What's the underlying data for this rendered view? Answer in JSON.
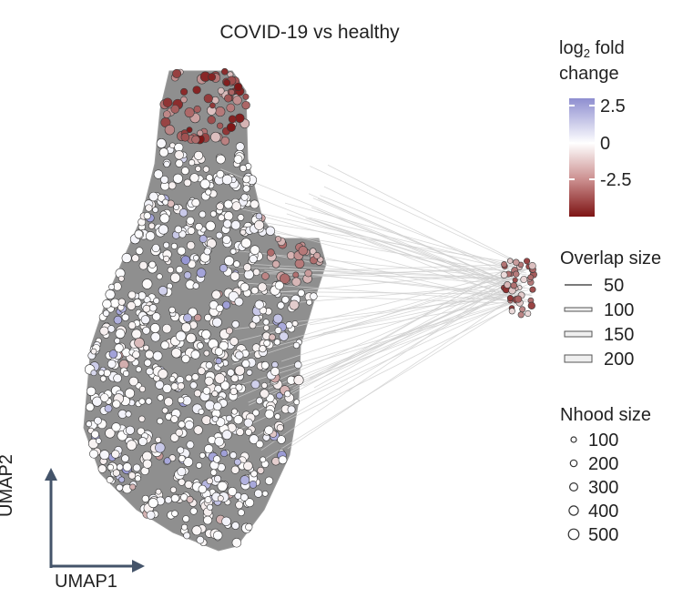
{
  "chart_data": {
    "type": "scatter",
    "title": "COVID-19 vs healthy",
    "xlabel": "UMAP1",
    "ylabel": "UMAP2",
    "grid": false,
    "nodes": "neighbourhood graph on UMAP embedding (milo-style), edges connect overlapping neighbourhoods",
    "color_legend": {
      "title_prefix": "log",
      "title_subscript": "2",
      "title_suffix": " fold",
      "title_line2": "change",
      "ticks": [
        "2.5",
        "0",
        "-2.5"
      ],
      "colors": [
        "#8e8ed0",
        "#ffffff",
        "#8b1a1a"
      ]
    },
    "overlap_legend": {
      "title": "Overlap size",
      "values": [
        "50",
        "100",
        "150",
        "200"
      ]
    },
    "nhood_legend": {
      "title": "Nhood size",
      "values": [
        "100",
        "200",
        "300",
        "400",
        "500"
      ]
    },
    "legend_position": "right"
  }
}
